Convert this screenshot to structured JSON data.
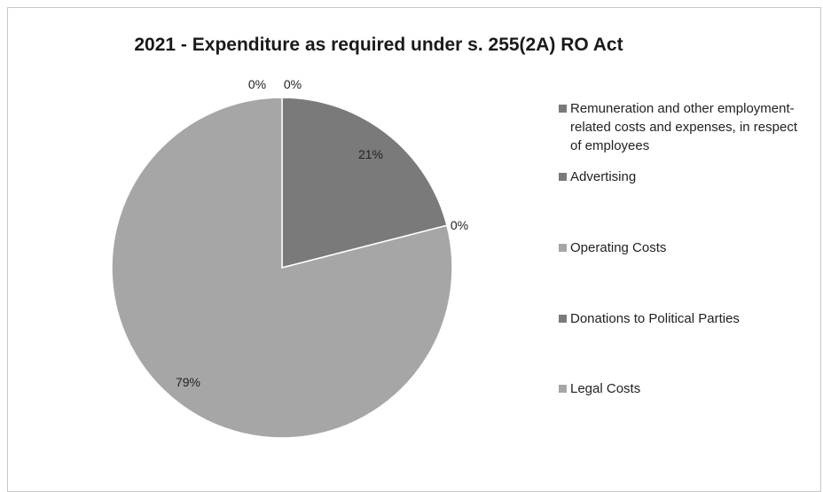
{
  "chart_data": {
    "type": "pie",
    "title": "2021 - Expenditure as required under s. 255(2A) RO Act",
    "categories": [
      "Remuneration and other employment-related costs and expenses, in respect of employees",
      "Advertising",
      "Operating Costs",
      "Donations to Political Parties",
      "Legal Costs"
    ],
    "values": [
      0,
      21,
      0,
      0,
      79
    ],
    "data_labels": [
      "0%",
      "21%",
      "0%",
      "0%",
      "79%"
    ],
    "colors": [
      "#7a7a7a",
      "#7a7a7a",
      "#a6a6a6",
      "#7a7a7a",
      "#a6a6a6"
    ],
    "legend_position": "right"
  }
}
